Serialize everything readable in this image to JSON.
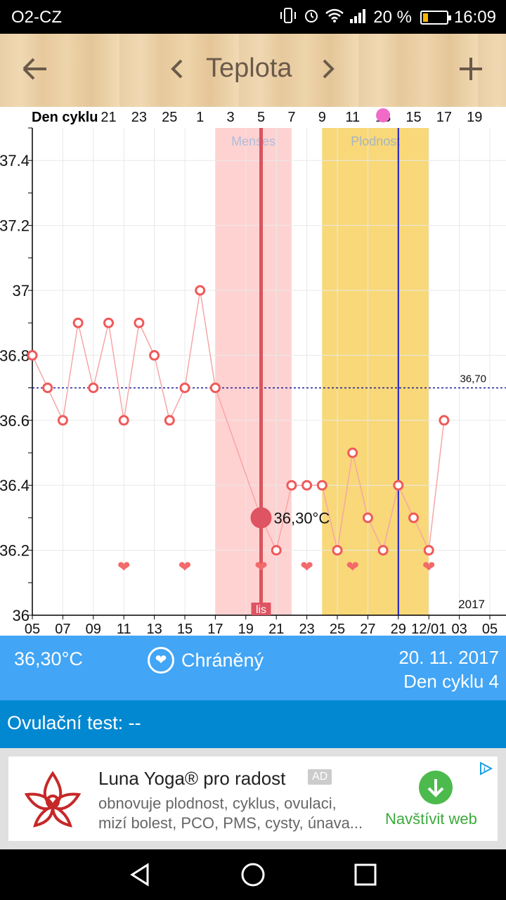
{
  "status_bar": {
    "carrier": "O2-CZ",
    "battery_percent": "20 %",
    "time": "16:09",
    "icons": [
      "vibrate-icon",
      "alarm-icon",
      "wifi-icon",
      "signal-icon",
      "battery-icon"
    ]
  },
  "toolbar": {
    "title": "Teplota",
    "back_icon": "arrow-left-icon",
    "prev_icon": "chevron-left-icon",
    "next_icon": "chevron-right-icon",
    "add_icon": "plus-icon"
  },
  "chart_data": {
    "type": "line",
    "top_axis_label": "Den cyklu",
    "top_ticks": [
      "21",
      "23",
      "25",
      "1",
      "3",
      "5",
      "7",
      "9",
      "11",
      "13",
      "15",
      "17",
      "19"
    ],
    "ovulation_marker_tick": "13",
    "x_ticks": [
      "05",
      "07",
      "09",
      "11",
      "13",
      "15",
      "17",
      "19",
      "21",
      "23",
      "25",
      "27",
      "29",
      "12/01",
      "03",
      "05"
    ],
    "y_ticks": [
      "36",
      "36.2",
      "36.4",
      "36.6",
      "36.8",
      "37",
      "37.2",
      "37.4"
    ],
    "ylim": [
      36,
      37.5
    ],
    "year_label": "2017",
    "coverline": {
      "value": 36.7,
      "label": "36,70"
    },
    "menses_band": {
      "label": "Menses",
      "start_day": 17,
      "end_day": 22
    },
    "fertile_band": {
      "label": "Plodnost",
      "start_day": 24,
      "end_day": 31
    },
    "selected": {
      "day": 20,
      "value": 36.3,
      "label": "36,30°C",
      "month_tag": "lis"
    },
    "ovulation_day": 29,
    "series": [
      {
        "x_days": [
          5,
          6,
          7,
          8,
          9,
          10,
          11,
          12,
          13,
          14,
          15,
          16,
          17,
          20,
          21,
          22,
          23,
          24,
          25,
          26,
          27,
          28,
          29,
          30,
          31,
          32
        ],
        "values": [
          36.8,
          36.7,
          36.6,
          36.9,
          36.7,
          36.9,
          36.6,
          36.9,
          36.8,
          36.6,
          36.7,
          37.0,
          36.7,
          36.3,
          36.2,
          36.4,
          36.4,
          36.4,
          36.2,
          36.5,
          36.3,
          36.2,
          36.4,
          36.3,
          36.2,
          36.6
        ]
      }
    ],
    "heart_days": [
      11,
      15,
      20,
      23,
      26,
      31
    ],
    "colors": {
      "line": "#f7a6a6",
      "marker": "#ef5a5a",
      "menses": "#ffd2d2",
      "fertile": "#f8d878",
      "ovulation_line": "#1a1acc",
      "selected_line": "#d9545e",
      "coverline": "#1a1a99"
    }
  },
  "info": {
    "temperature": "36,30°C",
    "protection": "Chráněný",
    "protection_icon": "heart-icon",
    "date": "20. 11. 2017",
    "cycle_day": "Den cyklu 4"
  },
  "ovulation_test": {
    "label": "Ovulační test: --"
  },
  "ad": {
    "title": "Luna Yoga® pro radost",
    "badge": "AD",
    "desc_line1": "obnovuje plodnost, cyklus, ovulaci,",
    "desc_line2": "mizí bolest, PCO, PMS, cysty, únava...",
    "cta": "Navštívit web",
    "cta_icon": "download-arrow-icon",
    "choices_icon": "ad-choices-icon",
    "logo_icon": "lotus-logo-icon"
  },
  "nav": {
    "icons": [
      "back-triangle-icon",
      "home-circle-icon",
      "recents-square-icon"
    ]
  }
}
